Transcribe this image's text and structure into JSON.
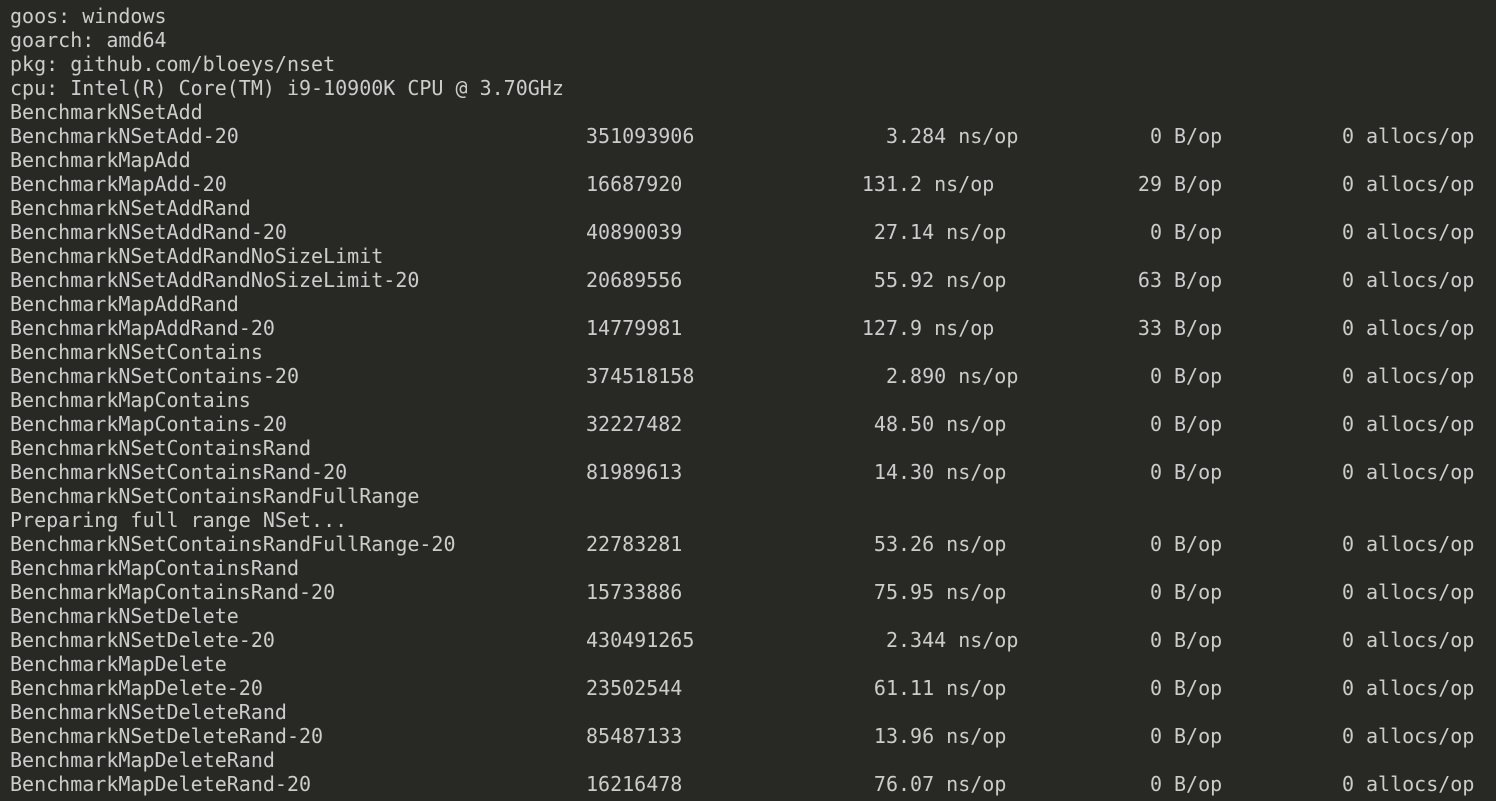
{
  "theme": {
    "background": "#282824",
    "foreground": "#cccccc"
  },
  "header": [
    "goos: windows",
    "goarch: amd64",
    "pkg: github.com/bloeys/nset",
    "cpu: Intel(R) Core(TM) i9-10900K CPU @ 3.70GHz"
  ],
  "output": [
    {
      "text": "BenchmarkNSetAdd"
    },
    {
      "name": "BenchmarkNSetAdd-20",
      "iterations": "351093906",
      "ns": "3.284",
      "ns_unit": "ns/op",
      "bytes": "0",
      "bytes_unit": "B/op",
      "allocs": "0",
      "allocs_unit": "allocs/op"
    },
    {
      "text": "BenchmarkMapAdd"
    },
    {
      "name": "BenchmarkMapAdd-20",
      "iterations": "16687920",
      "ns": "131.2",
      "ns_unit": "ns/op",
      "bytes": "29",
      "bytes_unit": "B/op",
      "allocs": "0",
      "allocs_unit": "allocs/op"
    },
    {
      "text": "BenchmarkNSetAddRand"
    },
    {
      "name": "BenchmarkNSetAddRand-20",
      "iterations": "40890039",
      "ns": "27.14",
      "ns_unit": "ns/op",
      "bytes": "0",
      "bytes_unit": "B/op",
      "allocs": "0",
      "allocs_unit": "allocs/op"
    },
    {
      "text": "BenchmarkNSetAddRandNoSizeLimit"
    },
    {
      "name": "BenchmarkNSetAddRandNoSizeLimit-20",
      "iterations": "20689556",
      "ns": "55.92",
      "ns_unit": "ns/op",
      "bytes": "63",
      "bytes_unit": "B/op",
      "allocs": "0",
      "allocs_unit": "allocs/op"
    },
    {
      "text": "BenchmarkMapAddRand"
    },
    {
      "name": "BenchmarkMapAddRand-20",
      "iterations": "14779981",
      "ns": "127.9",
      "ns_unit": "ns/op",
      "bytes": "33",
      "bytes_unit": "B/op",
      "allocs": "0",
      "allocs_unit": "allocs/op"
    },
    {
      "text": "BenchmarkNSetContains"
    },
    {
      "name": "BenchmarkNSetContains-20",
      "iterations": "374518158",
      "ns": "2.890",
      "ns_unit": "ns/op",
      "bytes": "0",
      "bytes_unit": "B/op",
      "allocs": "0",
      "allocs_unit": "allocs/op"
    },
    {
      "text": "BenchmarkMapContains"
    },
    {
      "name": "BenchmarkMapContains-20",
      "iterations": "32227482",
      "ns": "48.50",
      "ns_unit": "ns/op",
      "bytes": "0",
      "bytes_unit": "B/op",
      "allocs": "0",
      "allocs_unit": "allocs/op"
    },
    {
      "text": "BenchmarkNSetContainsRand"
    },
    {
      "name": "BenchmarkNSetContainsRand-20",
      "iterations": "81989613",
      "ns": "14.30",
      "ns_unit": "ns/op",
      "bytes": "0",
      "bytes_unit": "B/op",
      "allocs": "0",
      "allocs_unit": "allocs/op"
    },
    {
      "text": "BenchmarkNSetContainsRandFullRange"
    },
    {
      "text": "Preparing full range NSet..."
    },
    {
      "name": "BenchmarkNSetContainsRandFullRange-20",
      "iterations": "22783281",
      "ns": "53.26",
      "ns_unit": "ns/op",
      "bytes": "0",
      "bytes_unit": "B/op",
      "allocs": "0",
      "allocs_unit": "allocs/op"
    },
    {
      "text": "BenchmarkMapContainsRand"
    },
    {
      "name": "BenchmarkMapContainsRand-20",
      "iterations": "15733886",
      "ns": "75.95",
      "ns_unit": "ns/op",
      "bytes": "0",
      "bytes_unit": "B/op",
      "allocs": "0",
      "allocs_unit": "allocs/op"
    },
    {
      "text": "BenchmarkNSetDelete"
    },
    {
      "name": "BenchmarkNSetDelete-20",
      "iterations": "430491265",
      "ns": "2.344",
      "ns_unit": "ns/op",
      "bytes": "0",
      "bytes_unit": "B/op",
      "allocs": "0",
      "allocs_unit": "allocs/op"
    },
    {
      "text": "BenchmarkMapDelete"
    },
    {
      "name": "BenchmarkMapDelete-20",
      "iterations": "23502544",
      "ns": "61.11",
      "ns_unit": "ns/op",
      "bytes": "0",
      "bytes_unit": "B/op",
      "allocs": "0",
      "allocs_unit": "allocs/op"
    },
    {
      "text": "BenchmarkNSetDeleteRand"
    },
    {
      "name": "BenchmarkNSetDeleteRand-20",
      "iterations": "85487133",
      "ns": "13.96",
      "ns_unit": "ns/op",
      "bytes": "0",
      "bytes_unit": "B/op",
      "allocs": "0",
      "allocs_unit": "allocs/op"
    },
    {
      "text": "BenchmarkMapDeleteRand"
    },
    {
      "name": "BenchmarkMapDeleteRand-20",
      "iterations": "16216478",
      "ns": "76.07",
      "ns_unit": "ns/op",
      "bytes": "0",
      "bytes_unit": "B/op",
      "allocs": "0",
      "allocs_unit": "allocs/op"
    }
  ]
}
